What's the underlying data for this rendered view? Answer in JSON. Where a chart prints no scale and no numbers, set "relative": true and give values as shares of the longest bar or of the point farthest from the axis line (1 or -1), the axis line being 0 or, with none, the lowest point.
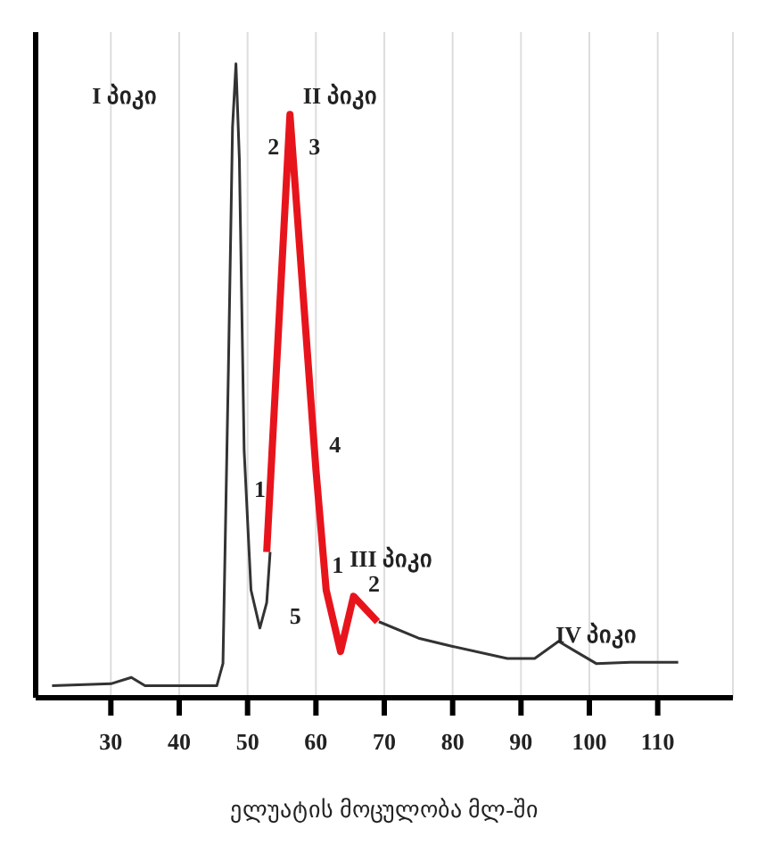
{
  "chart_data": {
    "type": "line",
    "relative": true,
    "xlabel": "ელუატის მოცულობა მლ-ში",
    "xlim": [
      19,
      121
    ],
    "xticks": [
      30,
      40,
      50,
      60,
      70,
      80,
      90,
      100,
      110
    ],
    "grid": "x",
    "marker": "none",
    "line_style": "solid",
    "series": [
      {
        "color": "#333333",
        "x": [
          21.4,
          30,
          33,
          35,
          45.5,
          46.4,
          47.2,
          47.8,
          48.3,
          48.8,
          49.5,
          50.5,
          51.8,
          52.8,
          53.3,
          60,
          69.2,
          75,
          80,
          88,
          92,
          95.5,
          98,
          101,
          106,
          113
        ],
        "values": [
          0.019,
          0.022,
          0.032,
          0.019,
          0.019,
          0.054,
          0.52,
          0.9,
          1,
          0.85,
          0.39,
          0.17,
          0.11,
          0.15,
          0.23,
          null,
          0.12,
          0.094,
          0.081,
          0.062,
          0.062,
          0.089,
          0.073,
          0.054,
          0.056,
          0.056
        ]
      },
      {
        "color": "#e8141c",
        "x": [
          52.8,
          56.2,
          60,
          61.5,
          63.6,
          65.5,
          69
        ],
        "values": [
          0.23,
          0.92,
          0.36,
          0.17,
          0.073,
          0.16,
          0.12
        ]
      }
    ],
    "annotations": [
      "I პიკი",
      "II პიკი",
      "III პიკი",
      "IV პიკი",
      "2",
      "3",
      "1",
      "4",
      "5",
      "1",
      "2"
    ]
  }
}
